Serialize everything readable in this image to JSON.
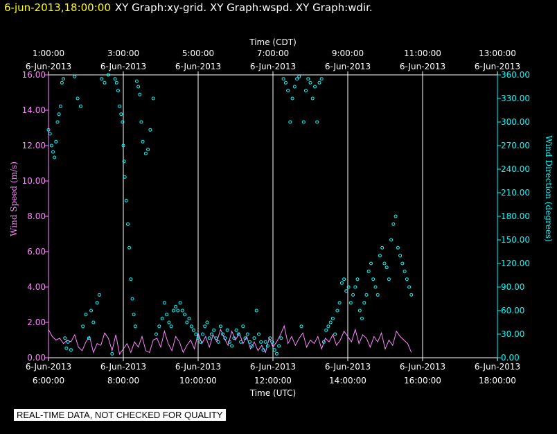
{
  "header": {
    "date": "6-jun-2013,18:00:00",
    "titles": "XY Graph:xy-grid.  XY Graph:wspd.  XY Graph:wdir."
  },
  "disclaimer": "REAL-TIME DATA, NOT CHECKED FOR QUALITY",
  "colors": {
    "wspd": "#ff88ff",
    "wdir": "#00ffff",
    "grid": "#ffffff",
    "background": "#000000"
  },
  "chart_data": {
    "type": "line",
    "top_axis": {
      "label": "Time (CDT)",
      "ticks": [
        {
          "time": "1:00:00",
          "date": "6-Jun-2013"
        },
        {
          "time": "3:00:00",
          "date": "6-Jun-2013"
        },
        {
          "time": "5:00:00",
          "date": "6-Jun-2013"
        },
        {
          "time": "7:00:00",
          "date": "6-Jun-2013"
        },
        {
          "time": "9:00:00",
          "date": "6-Jun-2013"
        },
        {
          "time": "11:00:00",
          "date": "6-Jun-2013"
        },
        {
          "time": "13:00:00",
          "date": "6-Jun-2013"
        }
      ]
    },
    "bottom_axis": {
      "label": "Time (UTC)",
      "ticks": [
        {
          "date": "6-Jun-2013",
          "time": "6:00:00"
        },
        {
          "date": "6-Jun-2013",
          "time": "8:00:00"
        },
        {
          "date": "6-Jun-2013",
          "time": "10:00:00"
        },
        {
          "date": "6-Jun-2013",
          "time": "12:00:00"
        },
        {
          "date": "6-Jun-2013",
          "time": "14:00:00"
        },
        {
          "date": "6-Jun-2013",
          "time": "16:00:00"
        },
        {
          "date": "6-Jun-2013",
          "time": "18:00:00"
        }
      ]
    },
    "xlim_utc_hours": [
      6,
      18
    ],
    "left_axis": {
      "label": "Wind Speed (m/s)",
      "ylim": [
        0,
        16
      ],
      "ticks": [
        "0.00",
        "2.00",
        "4.00",
        "6.00",
        "8.00",
        "10.00",
        "12.00",
        "14.00",
        "16.00"
      ]
    },
    "right_axis": {
      "label": "Wind Direction (degrees)",
      "ylim": [
        0,
        360
      ],
      "ticks": [
        "0.00",
        "30.00",
        "60.00",
        "90.00",
        "120.00",
        "150.00",
        "180.00",
        "210.00",
        "240.00",
        "270.00",
        "300.00",
        "330.00",
        "360.00"
      ]
    },
    "grid": "vertical lines at major x ticks",
    "series": [
      {
        "type": "line",
        "axis": "left",
        "x_utc_hours": [
          6.0,
          6.1,
          6.2,
          6.3,
          6.4,
          6.5,
          6.6,
          6.7,
          6.8,
          6.9,
          7.0,
          7.1,
          7.2,
          7.3,
          7.4,
          7.5,
          7.6,
          7.7,
          7.8,
          7.9,
          8.0,
          8.1,
          8.2,
          8.3,
          8.4,
          8.5,
          8.6,
          8.7,
          8.8,
          8.9,
          9.0,
          9.1,
          9.2,
          9.3,
          9.4,
          9.5,
          9.6,
          9.7,
          9.8,
          9.9,
          10.0,
          10.1,
          10.2,
          10.3,
          10.4,
          10.5,
          10.6,
          10.7,
          10.8,
          10.9,
          11.0,
          11.1,
          11.2,
          11.3,
          11.4,
          11.5,
          11.6,
          11.7,
          11.8,
          11.9,
          12.0,
          12.1,
          12.2,
          12.3,
          12.4,
          12.5,
          12.6,
          12.7,
          12.8,
          12.9,
          13.0,
          13.1,
          13.2,
          13.3,
          13.4,
          13.5,
          13.6,
          13.7,
          13.8,
          13.9,
          14.0,
          14.1,
          14.2,
          14.3,
          14.4,
          14.5,
          14.6,
          14.7,
          14.8,
          14.9,
          15.0,
          15.1,
          15.2,
          15.3,
          15.4,
          15.5,
          15.6,
          15.7
        ],
        "values": [
          1.6,
          1.2,
          1.0,
          1.1,
          0.8,
          1.0,
          0.9,
          1.3,
          0.6,
          0.4,
          0.9,
          1.2,
          0.3,
          0.8,
          0.7,
          1.4,
          1.1,
          0.4,
          1.3,
          0.2,
          0.5,
          0.8,
          0.3,
          0.9,
          0.6,
          1.2,
          0.4,
          0.3,
          1.0,
          1.1,
          0.6,
          1.5,
          0.8,
          0.4,
          1.2,
          0.9,
          0.3,
          0.7,
          1.0,
          0.5,
          1.4,
          0.8,
          1.2,
          0.6,
          1.3,
          0.9,
          1.6,
          1.1,
          0.7,
          1.5,
          1.0,
          1.4,
          0.8,
          1.2,
          0.5,
          0.9,
          0.4,
          0.7,
          0.3,
          1.1,
          0.6,
          0.9,
          1.3,
          1.8,
          0.8,
          1.2,
          0.7,
          1.1,
          1.4,
          0.6,
          1.0,
          0.8,
          1.2,
          0.5,
          1.1,
          0.9,
          1.3,
          0.7,
          1.0,
          1.5,
          1.2,
          0.9,
          1.6,
          0.8,
          1.3,
          1.1,
          0.6,
          1.2,
          0.9,
          1.4,
          0.5,
          1.0,
          0.7,
          1.5,
          1.2,
          1.0,
          0.8,
          0.3
        ]
      },
      {
        "type": "scatter",
        "axis": "right",
        "x_utc_hours": [
          6.0,
          6.04,
          6.08,
          6.12,
          6.16,
          6.2,
          6.24,
          6.28,
          6.32,
          6.36,
          6.4,
          6.44,
          6.48,
          6.52,
          6.6,
          6.7,
          6.78,
          6.86,
          6.92,
          7.0,
          7.08,
          7.14,
          7.2,
          7.3,
          7.36,
          7.42,
          7.5,
          7.6,
          7.7,
          7.78,
          7.82,
          7.86,
          7.9,
          7.94,
          7.98,
          8.0,
          8.02,
          8.04,
          8.08,
          8.12,
          8.16,
          8.2,
          8.24,
          8.28,
          8.32,
          8.36,
          8.4,
          8.44,
          8.48,
          8.52,
          8.6,
          8.66,
          8.72,
          8.8,
          8.88,
          8.96,
          9.04,
          9.1,
          9.16,
          9.22,
          9.28,
          9.34,
          9.4,
          9.46,
          9.52,
          9.58,
          9.64,
          9.7,
          9.76,
          9.82,
          9.88,
          9.94,
          10.0,
          10.06,
          10.12,
          10.18,
          10.24,
          10.3,
          10.36,
          10.42,
          10.48,
          10.54,
          10.6,
          10.66,
          10.72,
          10.78,
          10.84,
          10.9,
          10.96,
          11.02,
          11.08,
          11.14,
          11.2,
          11.26,
          11.32,
          11.38,
          11.44,
          11.5,
          11.56,
          11.62,
          11.68,
          11.74,
          11.8,
          11.86,
          11.92,
          11.98,
          12.04,
          12.1,
          12.16,
          12.22,
          12.28,
          12.34,
          12.4,
          12.46,
          12.52,
          12.58,
          12.64,
          12.7,
          12.76,
          12.82,
          12.88,
          12.94,
          13.0,
          13.06,
          13.12,
          13.18,
          13.24,
          13.3,
          13.36,
          13.42,
          13.48,
          13.54,
          13.6,
          13.66,
          13.72,
          13.78,
          13.84,
          13.9,
          13.96,
          14.02,
          14.08,
          14.14,
          14.2,
          14.26,
          14.32,
          14.38,
          14.44,
          14.5,
          14.56,
          14.62,
          14.68,
          14.74,
          14.8,
          14.86,
          14.92,
          14.98,
          15.04,
          15.1,
          15.16,
          15.22,
          15.28,
          15.34,
          15.4,
          15.46,
          15.52,
          15.58,
          15.64,
          15.7
        ],
        "values": [
          290,
          285,
          270,
          262,
          255,
          275,
          300,
          310,
          320,
          350,
          355,
          25,
          12,
          20,
          10,
          358,
          330,
          320,
          40,
          55,
          25,
          60,
          45,
          70,
          80,
          355,
          350,
          360,
          5,
          355,
          350,
          340,
          320,
          310,
          300,
          270,
          250,
          230,
          200,
          170,
          140,
          100,
          75,
          55,
          40,
          352,
          345,
          335,
          300,
          275,
          260,
          265,
          290,
          330,
          30,
          40,
          50,
          70,
          55,
          45,
          40,
          60,
          65,
          60,
          70,
          60,
          55,
          45,
          50,
          40,
          35,
          30,
          25,
          20,
          30,
          40,
          45,
          25,
          30,
          35,
          25,
          20,
          40,
          30,
          25,
          35,
          20,
          15,
          25,
          35,
          30,
          20,
          40,
          25,
          30,
          20,
          15,
          25,
          60,
          30,
          20,
          10,
          20,
          15,
          25,
          20,
          10,
          5,
          15,
          25,
          355,
          350,
          340,
          300,
          330,
          345,
          355,
          358,
          40,
          300,
          340,
          355,
          350,
          330,
          345,
          300,
          350,
          355,
          20,
          35,
          40,
          45,
          50,
          30,
          60,
          70,
          95,
          100,
          85,
          90,
          70,
          80,
          90,
          100,
          60,
          50,
          70,
          80,
          110,
          120,
          100,
          90,
          80,
          130,
          140,
          120,
          115,
          100,
          150,
          170,
          180,
          140,
          130,
          120,
          110,
          100,
          90,
          80
        ]
      }
    ]
  }
}
